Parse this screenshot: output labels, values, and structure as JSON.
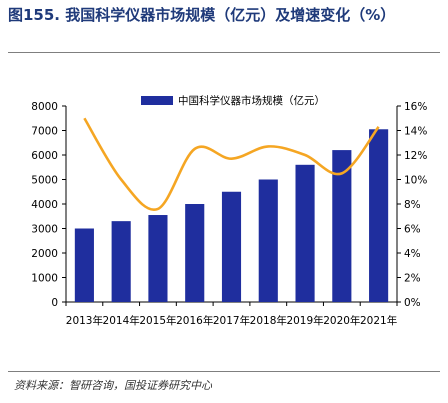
{
  "header": {
    "title": "图155. 我国科学仪器市场规模（亿元）及增速变化（%）"
  },
  "footer": {
    "source": "资料来源：智研咨询，国投证券研究中心"
  },
  "colors": {
    "bar": "#1f2e9e",
    "line": "#f5a623",
    "title": "#1f3a7a"
  },
  "chart_data": {
    "type": "bar",
    "categories": [
      "2013年",
      "2014年",
      "2015年",
      "2016年",
      "2017年",
      "2018年",
      "2019年",
      "2020年",
      "2021年"
    ],
    "series": [
      {
        "name": "中国科学仪器市场规模（亿元）",
        "type": "bar",
        "axis": "left",
        "values": [
          3000,
          3300,
          3550,
          4000,
          4500,
          5000,
          5600,
          6200,
          7050
        ]
      },
      {
        "name": "",
        "type": "line",
        "axis": "right",
        "values": [
          15.0,
          10.0,
          7.6,
          12.5,
          11.7,
          12.7,
          12.0,
          10.5,
          14.3
        ]
      }
    ],
    "ylim": [
      0,
      8000
    ],
    "y_ticks": [
      "0",
      "1000",
      "2000",
      "3000",
      "4000",
      "5000",
      "6000",
      "7000",
      "8000"
    ],
    "y2lim": [
      0,
      16
    ],
    "y2_ticks": [
      "0%",
      "2%",
      "4%",
      "6%",
      "8%",
      "10%",
      "12%",
      "14%",
      "16%"
    ],
    "legend": "top-center",
    "grid": false
  }
}
